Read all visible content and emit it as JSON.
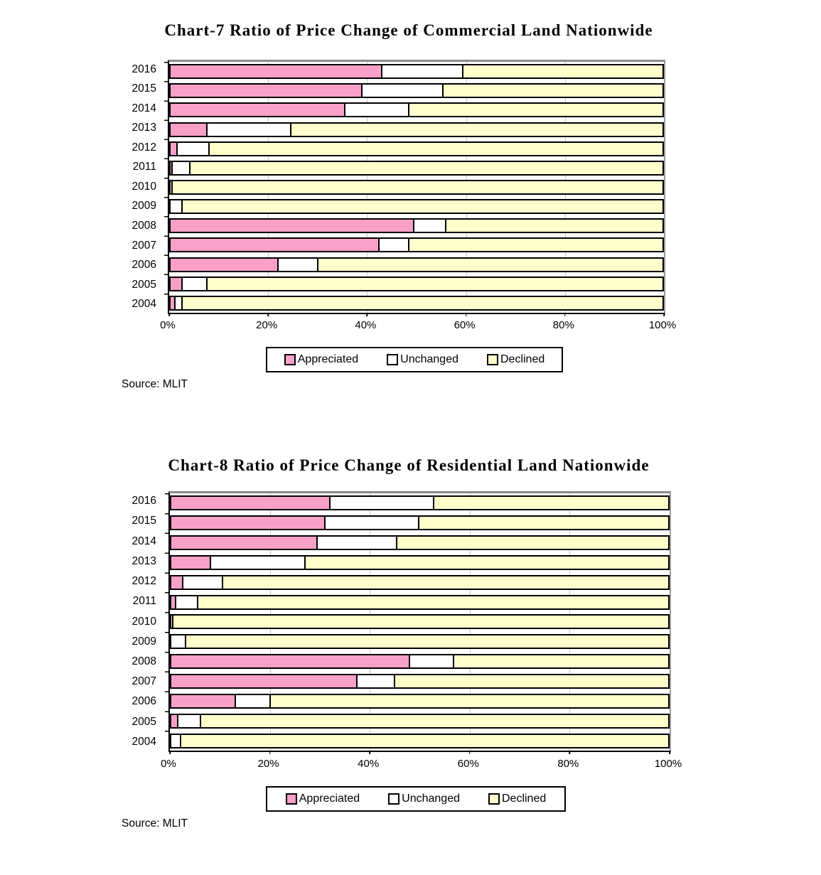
{
  "chart_data": [
    {
      "type": "bar",
      "orientation": "horizontal",
      "stacked": true,
      "title": "Chart-7 Ratio of Price Change of Commercial Land Nationwide",
      "source": "Source: MLIT",
      "categories": [
        "2016",
        "2015",
        "2014",
        "2013",
        "2012",
        "2011",
        "2010",
        "2009",
        "2008",
        "2007",
        "2006",
        "2005",
        "2004"
      ],
      "series": [
        {
          "name": "Appreciated",
          "color": "#F9A0C8",
          "values": [
            43,
            39,
            35.5,
            7.5,
            1.5,
            0.5,
            0,
            0,
            49.5,
            42.5,
            22,
            2.5,
            1
          ]
        },
        {
          "name": "Unchanged",
          "color": "#FFFFFF",
          "values": [
            16.5,
            16.5,
            13,
            17,
            6.5,
            3.5,
            0.5,
            2.5,
            6.5,
            6,
            8,
            5,
            1.5
          ]
        },
        {
          "name": "Declined",
          "color": "#FFFFCC",
          "values": [
            40.5,
            44.5,
            51.5,
            75.5,
            92,
            96,
            99.5,
            97.5,
            44,
            51.5,
            70,
            92.5,
            97.5
          ]
        }
      ],
      "x_ticks": [
        "0%",
        "20%",
        "40%",
        "60%",
        "80%",
        "100%"
      ],
      "xlim": [
        0,
        100
      ],
      "unit": "%",
      "grid": "vertical",
      "legend_position": "bottom",
      "legend": [
        "Appreciated",
        "Unchanged",
        "Declined"
      ]
    },
    {
      "type": "bar",
      "orientation": "horizontal",
      "stacked": true,
      "title": "Chart-8 Ratio of Price Change of Residential Land Nationwide",
      "source": "Source: MLIT",
      "categories": [
        "2016",
        "2015",
        "2014",
        "2013",
        "2012",
        "2011",
        "2010",
        "2009",
        "2008",
        "2007",
        "2006",
        "2005",
        "2004"
      ],
      "series": [
        {
          "name": "Appreciated",
          "color": "#F9A0C8",
          "values": [
            32,
            31,
            29.5,
            8,
            2.5,
            1,
            0,
            0,
            48,
            37.5,
            13,
            1.5,
            0
          ]
        },
        {
          "name": "Unchanged",
          "color": "#FFFFFF",
          "values": [
            21,
            19,
            16,
            19,
            8,
            4.5,
            0.5,
            3,
            9,
            7.5,
            7,
            4.5,
            2
          ]
        },
        {
          "name": "Declined",
          "color": "#FFFFCC",
          "values": [
            47,
            50,
            54.5,
            73,
            89.5,
            94.5,
            99.5,
            97,
            43,
            55,
            80,
            94,
            98
          ]
        }
      ],
      "x_ticks": [
        "0%",
        "20%",
        "40%",
        "60%",
        "80%",
        "100%"
      ],
      "xlim": [
        0,
        100
      ],
      "unit": "%",
      "grid": "vertical",
      "legend_position": "bottom",
      "legend": [
        "Appreciated",
        "Unchanged",
        "Declined"
      ]
    }
  ]
}
